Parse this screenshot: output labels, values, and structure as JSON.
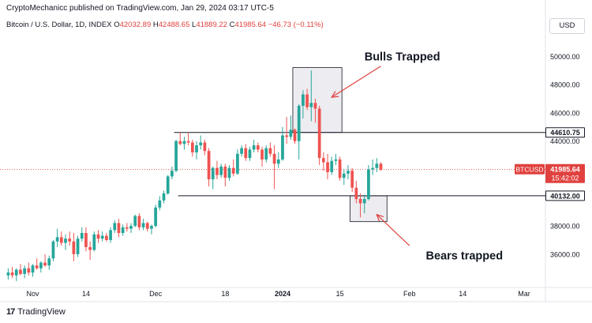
{
  "header": {
    "publisher_text": "CryptoMechanicc published on TradingView.com, Jan 29, 2024 03:17 UTC-5"
  },
  "legend": {
    "symbol": "Bitcoin / U.S. Dollar, 1D, INDEX",
    "o_label": "O",
    "o_value": "42032.89",
    "h_label": "H",
    "h_value": "42488.65",
    "l_label": "L",
    "l_value": "41889.22",
    "c_label": "C",
    "c_value": "41985.64",
    "change": "−46.73 (−0.11%)"
  },
  "currency_button": "USD",
  "footer": {
    "logo_text": "17",
    "brand": "TradingView"
  },
  "colors": {
    "up": "#26a69a",
    "down": "#ef5350",
    "price_tag": "#e0413e",
    "box_fill": "#e9e9ef"
  },
  "chart_data": {
    "type": "candlestick",
    "symbol": "BTCUSD",
    "ylim": [
      33700,
      51300
    ],
    "y_ticks": [
      36000,
      38000,
      40000,
      42000,
      44000,
      46000,
      48000,
      50000
    ],
    "y_tick_labels": [
      "36000.00",
      "38000.00",
      "40000.00",
      "42000.00",
      "44000.00",
      "46000.00",
      "48000.00",
      "50000.00"
    ],
    "x_ticks": [
      {
        "label": "Nov",
        "day": 1
      },
      {
        "label": "14",
        "day": 14
      },
      {
        "label": "Dec",
        "day": 31
      },
      {
        "label": "18",
        "day": 48
      },
      {
        "label": "2024",
        "day": 62
      },
      {
        "label": "15",
        "day": 76
      },
      {
        "label": "Feb",
        "day": 93
      },
      {
        "label": "14",
        "day": 106
      },
      {
        "label": "Mar",
        "day": 121
      }
    ],
    "candles": [
      [
        -5,
        34500,
        35000,
        34200,
        34700
      ],
      [
        -4,
        34700,
        35100,
        34300,
        34500
      ],
      [
        -3,
        34500,
        35000,
        34100,
        34900
      ],
      [
        -2,
        34900,
        35300,
        34500,
        34600
      ],
      [
        -1,
        34600,
        35200,
        34300,
        35000
      ],
      [
        0,
        35000,
        35400,
        34500,
        34700
      ],
      [
        1,
        34700,
        35300,
        34400,
        35200
      ],
      [
        2,
        35200,
        35700,
        34900,
        35000
      ],
      [
        3,
        35000,
        35500,
        34700,
        35400
      ],
      [
        4,
        35400,
        36000,
        35100,
        35200
      ],
      [
        5,
        35200,
        35900,
        34900,
        35700
      ],
      [
        6,
        35700,
        37000,
        35500,
        36900
      ],
      [
        7,
        36900,
        37800,
        36500,
        37200
      ],
      [
        8,
        37200,
        37600,
        36600,
        36800
      ],
      [
        9,
        36800,
        37400,
        36300,
        37100
      ],
      [
        10,
        37100,
        37600,
        36600,
        36900
      ],
      [
        11,
        36900,
        37500,
        35500,
        36000
      ],
      [
        12,
        36000,
        37300,
        35800,
        37100
      ],
      [
        13,
        37100,
        37900,
        36900,
        37500
      ],
      [
        14,
        37500,
        37900,
        36200,
        36500
      ],
      [
        15,
        36500,
        36900,
        35600,
        36300
      ],
      [
        16,
        36300,
        37600,
        36200,
        37400
      ],
      [
        17,
        37400,
        37700,
        36800,
        37100
      ],
      [
        18,
        37100,
        37600,
        36900,
        37300
      ],
      [
        19,
        37300,
        37500,
        36900,
        37000
      ],
      [
        20,
        37000,
        37900,
        36800,
        37700
      ],
      [
        21,
        37700,
        38400,
        37500,
        38200
      ],
      [
        22,
        38200,
        38500,
        37200,
        37500
      ],
      [
        23,
        37500,
        38100,
        37300,
        37900
      ],
      [
        24,
        37900,
        38200,
        37600,
        37800
      ],
      [
        25,
        37800,
        38200,
        37500,
        38000
      ],
      [
        26,
        38000,
        38800,
        37900,
        38700
      ],
      [
        27,
        38700,
        38900,
        37700,
        37900
      ],
      [
        28,
        37900,
        38500,
        37700,
        38200
      ],
      [
        29,
        38200,
        38300,
        37600,
        37800
      ],
      [
        30,
        37800,
        38100,
        37400,
        38000
      ],
      [
        31,
        38000,
        39500,
        37900,
        39300
      ],
      [
        32,
        39300,
        40100,
        39100,
        39800
      ],
      [
        33,
        39800,
        40500,
        39600,
        40300
      ],
      [
        34,
        40300,
        41600,
        40200,
        41500
      ],
      [
        35,
        41500,
        42200,
        41300,
        41900
      ],
      [
        36,
        41900,
        44100,
        41800,
        44000
      ],
      [
        37,
        44000,
        44600,
        43700,
        43800
      ],
      [
        38,
        43800,
        44300,
        43400,
        44000
      ],
      [
        39,
        44000,
        44600,
        43700,
        43900
      ],
      [
        40,
        43900,
        44100,
        42900,
        43200
      ],
      [
        41,
        43200,
        44000,
        42700,
        43700
      ],
      [
        42,
        43700,
        44400,
        43400,
        43900
      ],
      [
        43,
        43900,
        44100,
        43000,
        43300
      ],
      [
        44,
        43300,
        43500,
        40800,
        41300
      ],
      [
        45,
        41300,
        42200,
        40600,
        42100
      ],
      [
        46,
        42100,
        42600,
        41300,
        41600
      ],
      [
        47,
        41600,
        42400,
        41400,
        42200
      ],
      [
        48,
        42200,
        42400,
        40800,
        41400
      ],
      [
        49,
        41400,
        42300,
        41200,
        42100
      ],
      [
        50,
        42100,
        42700,
        41500,
        41700
      ],
      [
        51,
        41700,
        43400,
        41600,
        43100
      ],
      [
        52,
        43100,
        43700,
        42900,
        43500
      ],
      [
        53,
        43500,
        43800,
        42600,
        42800
      ],
      [
        54,
        42800,
        43600,
        42600,
        43400
      ],
      [
        55,
        43400,
        44100,
        43200,
        43700
      ],
      [
        56,
        43700,
        43900,
        43200,
        43400
      ],
      [
        57,
        43400,
        43600,
        42200,
        42700
      ],
      [
        58,
        42700,
        43700,
        42500,
        43500
      ],
      [
        59,
        43500,
        43900,
        42900,
        43100
      ],
      [
        60,
        43100,
        43700,
        40600,
        42400
      ],
      [
        61,
        42400,
        43200,
        42100,
        42700
      ],
      [
        62,
        42700,
        45000,
        42600,
        44400
      ],
      [
        63,
        44400,
        45700,
        43800,
        44300
      ],
      [
        64,
        44300,
        45800,
        44100,
        44800
      ],
      [
        65,
        44800,
        44900,
        43800,
        44000
      ],
      [
        66,
        44000,
        46600,
        42700,
        46500
      ],
      [
        67,
        46500,
        47600,
        45600,
        47300
      ],
      [
        68,
        47300,
        47700,
        46200,
        46400
      ],
      [
        69,
        46400,
        49000,
        45400,
        46700
      ],
      [
        70,
        46700,
        47000,
        45300,
        46300
      ],
      [
        71,
        46300,
        46500,
        42300,
        42800
      ],
      [
        72,
        42800,
        43200,
        41900,
        42500
      ],
      [
        73,
        42500,
        43100,
        41300,
        41800
      ],
      [
        74,
        41800,
        42900,
        41600,
        42600
      ],
      [
        75,
        42600,
        43100,
        42300,
        42700
      ],
      [
        76,
        42700,
        42900,
        41200,
        41400
      ],
      [
        77,
        41400,
        42000,
        40900,
        41700
      ],
      [
        78,
        41700,
        42300,
        41300,
        41900
      ],
      [
        79,
        41900,
        42100,
        40400,
        40700
      ],
      [
        80,
        40700,
        41200,
        39600,
        39900
      ],
      [
        81,
        39900,
        40300,
        38600,
        39600
      ],
      [
        82,
        39600,
        40200,
        38900,
        39900
      ],
      [
        83,
        39900,
        42300,
        39800,
        42000
      ],
      [
        84,
        42000,
        42700,
        41600,
        42100
      ],
      [
        85,
        42100,
        42800,
        41800,
        42400
      ],
      [
        86,
        42400,
        42500,
        41900,
        41986
      ]
    ],
    "levels": [
      {
        "label": "44610.75",
        "value": 44610.75,
        "from_day": 36
      },
      {
        "label": "40132.00",
        "value": 40132.0,
        "from_day": 37
      }
    ],
    "boxes": [
      {
        "from_day": 65,
        "to_day": 77,
        "low": 44610.75,
        "high": 49200
      },
      {
        "from_day": 79,
        "to_day": 88,
        "low": 38300,
        "high": 40132.0
      }
    ],
    "annotations": [
      {
        "text": "Bulls Trapped",
        "text_day": 82,
        "text_value": 50000,
        "arrow_from_day": 86,
        "arrow_from_value": 49300,
        "arrow_to_day": 74,
        "arrow_to_value": 47100
      },
      {
        "text": "Bears trapped",
        "text_day": 97,
        "text_value": 35900,
        "arrow_from_day": 93,
        "arrow_from_value": 36600,
        "arrow_to_day": 85,
        "arrow_to_value": 38800
      }
    ],
    "last_price": {
      "label": "BTCUSD",
      "value": 41985.64,
      "value_text": "41985.64",
      "countdown": "15:42:02"
    }
  }
}
